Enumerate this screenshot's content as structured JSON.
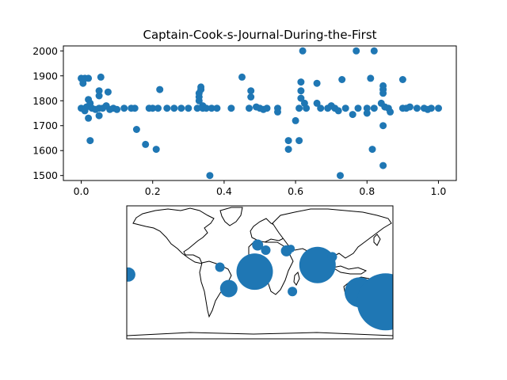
{
  "chart_data": [
    {
      "type": "scatter",
      "title": "Captain-Cook-s-Journal-During-the-First",
      "xlim": [
        -0.05,
        1.05
      ],
      "ylim": [
        1480,
        2020
      ],
      "xticks": [
        "0.0",
        "0.2",
        "0.4",
        "0.6",
        "0.8",
        "1.0"
      ],
      "yticks": [
        "1500",
        "1600",
        "1700",
        "1800",
        "1900",
        "2000"
      ],
      "grid": false,
      "color": "#1f77b4",
      "points": [
        [
          0.0,
          1890
        ],
        [
          0.005,
          1870
        ],
        [
          0.01,
          1890
        ],
        [
          0.02,
          1890
        ],
        [
          0.0,
          1770
        ],
        [
          0.01,
          1760
        ],
        [
          0.015,
          1775
        ],
        [
          0.02,
          1805
        ],
        [
          0.025,
          1790
        ],
        [
          0.02,
          1730
        ],
        [
          0.025,
          1640
        ],
        [
          0.03,
          1770
        ],
        [
          0.04,
          1765
        ],
        [
          0.05,
          1770
        ],
        [
          0.05,
          1820
        ],
        [
          0.05,
          1840
        ],
        [
          0.05,
          1740
        ],
        [
          0.055,
          1895
        ],
        [
          0.06,
          1770
        ],
        [
          0.07,
          1780
        ],
        [
          0.075,
          1835
        ],
        [
          0.08,
          1765
        ],
        [
          0.09,
          1770
        ],
        [
          0.1,
          1765
        ],
        [
          0.12,
          1770
        ],
        [
          0.14,
          1770
        ],
        [
          0.15,
          1770
        ],
        [
          0.155,
          1685
        ],
        [
          0.18,
          1625
        ],
        [
          0.19,
          1770
        ],
        [
          0.2,
          1770
        ],
        [
          0.21,
          1605
        ],
        [
          0.215,
          1770
        ],
        [
          0.22,
          1845
        ],
        [
          0.24,
          1770
        ],
        [
          0.26,
          1770
        ],
        [
          0.28,
          1770
        ],
        [
          0.3,
          1770
        ],
        [
          0.325,
          1770
        ],
        [
          0.33,
          1800
        ],
        [
          0.33,
          1815
        ],
        [
          0.33,
          1830
        ],
        [
          0.335,
          1845
        ],
        [
          0.335,
          1855
        ],
        [
          0.34,
          1780
        ],
        [
          0.34,
          1770
        ],
        [
          0.35,
          1770
        ],
        [
          0.36,
          1500
        ],
        [
          0.365,
          1770
        ],
        [
          0.38,
          1770
        ],
        [
          0.42,
          1770
        ],
        [
          0.45,
          1895
        ],
        [
          0.47,
          1770
        ],
        [
          0.475,
          1840
        ],
        [
          0.475,
          1815
        ],
        [
          0.49,
          1775
        ],
        [
          0.5,
          1770
        ],
        [
          0.51,
          1765
        ],
        [
          0.52,
          1770
        ],
        [
          0.55,
          1770
        ],
        [
          0.55,
          1755
        ],
        [
          0.58,
          1640
        ],
        [
          0.58,
          1605
        ],
        [
          0.6,
          1720
        ],
        [
          0.61,
          1770
        ],
        [
          0.61,
          1640
        ],
        [
          0.615,
          1810
        ],
        [
          0.615,
          1840
        ],
        [
          0.615,
          1875
        ],
        [
          0.62,
          2000
        ],
        [
          0.625,
          1790
        ],
        [
          0.63,
          1770
        ],
        [
          0.66,
          1870
        ],
        [
          0.66,
          1790
        ],
        [
          0.67,
          1770
        ],
        [
          0.69,
          1770
        ],
        [
          0.7,
          1780
        ],
        [
          0.71,
          1770
        ],
        [
          0.72,
          1760
        ],
        [
          0.725,
          1500
        ],
        [
          0.73,
          1885
        ],
        [
          0.74,
          1770
        ],
        [
          0.76,
          1745
        ],
        [
          0.77,
          2000
        ],
        [
          0.775,
          1770
        ],
        [
          0.8,
          1770
        ],
        [
          0.8,
          1750
        ],
        [
          0.81,
          1890
        ],
        [
          0.815,
          1605
        ],
        [
          0.82,
          2000
        ],
        [
          0.82,
          1770
        ],
        [
          0.84,
          1790
        ],
        [
          0.845,
          1860
        ],
        [
          0.845,
          1845
        ],
        [
          0.845,
          1830
        ],
        [
          0.845,
          1700
        ],
        [
          0.845,
          1540
        ],
        [
          0.85,
          1775
        ],
        [
          0.86,
          1770
        ],
        [
          0.865,
          1755
        ],
        [
          0.9,
          1885
        ],
        [
          0.9,
          1770
        ],
        [
          0.91,
          1770
        ],
        [
          0.92,
          1775
        ],
        [
          0.94,
          1770
        ],
        [
          0.96,
          1770
        ],
        [
          0.97,
          1765
        ],
        [
          0.98,
          1770
        ],
        [
          1.0,
          1770
        ]
      ]
    },
    {
      "type": "map",
      "projection": "equirectangular",
      "extent": {
        "lon": [
          -180,
          180
        ],
        "lat": [
          -90,
          90
        ]
      },
      "color": "#1f77b4",
      "bubbles": [
        {
          "lon": -178,
          "lat": -3,
          "size": 9
        },
        {
          "lon": -54,
          "lat": 7,
          "size": 6
        },
        {
          "lon": -42,
          "lat": -22,
          "size": 11
        },
        {
          "lon": -7,
          "lat": 1,
          "size": 23
        },
        {
          "lon": -3,
          "lat": 37,
          "size": 7
        },
        {
          "lon": 8,
          "lat": 30,
          "size": 6
        },
        {
          "lon": 36,
          "lat": 29,
          "size": 7
        },
        {
          "lon": 42,
          "lat": 32,
          "size": 5
        },
        {
          "lon": 44,
          "lat": -26,
          "size": 6
        },
        {
          "lon": 78,
          "lat": 10,
          "size": 23
        },
        {
          "lon": 98,
          "lat": 21,
          "size": 6
        },
        {
          "lon": 135,
          "lat": -27,
          "size": 19
        },
        {
          "lon": 170,
          "lat": -40,
          "size": 36
        }
      ]
    }
  ]
}
